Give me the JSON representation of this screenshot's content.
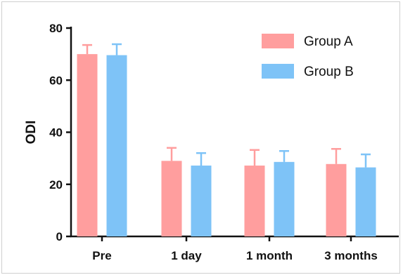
{
  "chart_data": {
    "type": "bar",
    "categories": [
      "Pre",
      "1 day",
      "1 month",
      "3 months"
    ],
    "series": [
      {
        "name": "Group A",
        "values": [
          70.0,
          29.0,
          27.2,
          27.8
        ],
        "errors": [
          3.5,
          5.0,
          6.0,
          5.8
        ],
        "color": "#FF9E9E"
      },
      {
        "name": "Group B",
        "values": [
          69.6,
          27.2,
          28.6,
          26.5
        ],
        "errors": [
          4.2,
          4.8,
          4.2,
          5.0
        ],
        "color": "#7EC3F7"
      }
    ],
    "ylabel": "ODI",
    "xlabel": "",
    "ylim": [
      0,
      80
    ],
    "yticks": [
      0,
      20,
      40,
      60,
      80
    ],
    "legend_position": "top-right",
    "grid": false
  }
}
